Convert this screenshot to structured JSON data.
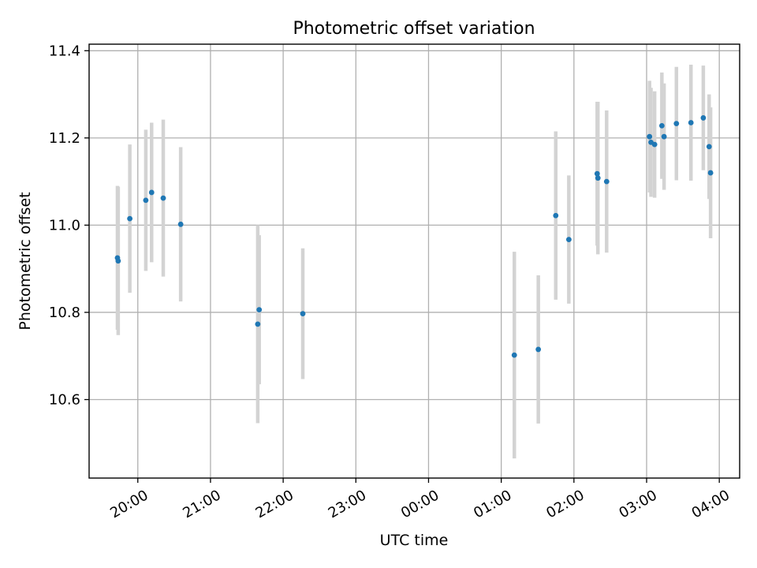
{
  "chart_data": {
    "type": "scatter",
    "title": "Photometric offset variation",
    "xlabel": "UTC time",
    "ylabel": "Photometric offset",
    "x_unit": "hours since 00:00 (negative = previous day)",
    "xlim": [
      -4.67,
      4.28
    ],
    "ylim": [
      10.42,
      11.415
    ],
    "x_ticks": [
      {
        "value": -4,
        "label": "20:00"
      },
      {
        "value": -3,
        "label": "21:00"
      },
      {
        "value": -2,
        "label": "22:00"
      },
      {
        "value": -1,
        "label": "23:00"
      },
      {
        "value": 0,
        "label": "00:00"
      },
      {
        "value": 1,
        "label": "01:00"
      },
      {
        "value": 2,
        "label": "02:00"
      },
      {
        "value": 3,
        "label": "03:00"
      },
      {
        "value": 4,
        "label": "04:00"
      }
    ],
    "y_ticks": [
      {
        "value": 10.6,
        "label": "10.6"
      },
      {
        "value": 10.8,
        "label": "10.8"
      },
      {
        "value": 11.0,
        "label": "11.0"
      },
      {
        "value": 11.2,
        "label": "11.2"
      },
      {
        "value": 11.4,
        "label": "11.4"
      }
    ],
    "grid": true,
    "point_color": "#1f77b4",
    "errorbar_color": "#d3d3d3",
    "points": [
      {
        "x": -4.28,
        "y": 10.925,
        "err": 0.165
      },
      {
        "x": -4.27,
        "y": 10.918,
        "err": 0.17
      },
      {
        "x": -4.11,
        "y": 11.015,
        "err": 0.17
      },
      {
        "x": -3.89,
        "y": 11.057,
        "err": 0.162
      },
      {
        "x": -3.81,
        "y": 11.075,
        "err": 0.16
      },
      {
        "x": -3.65,
        "y": 11.062,
        "err": 0.18
      },
      {
        "x": -3.41,
        "y": 11.002,
        "err": 0.177
      },
      {
        "x": -2.35,
        "y": 10.773,
        "err": 0.227
      },
      {
        "x": -2.33,
        "y": 10.806,
        "err": 0.171
      },
      {
        "x": -1.73,
        "y": 10.797,
        "err": 0.15
      },
      {
        "x": 1.18,
        "y": 10.702,
        "err": 0.237
      },
      {
        "x": 1.51,
        "y": 10.715,
        "err": 0.17
      },
      {
        "x": 1.75,
        "y": 11.022,
        "err": 0.193
      },
      {
        "x": 1.93,
        "y": 10.967,
        "err": 0.147
      },
      {
        "x": 2.32,
        "y": 11.118,
        "err": 0.165
      },
      {
        "x": 2.33,
        "y": 11.108,
        "err": 0.175
      },
      {
        "x": 2.45,
        "y": 11.1,
        "err": 0.163
      },
      {
        "x": 3.04,
        "y": 11.203,
        "err": 0.128
      },
      {
        "x": 3.06,
        "y": 11.19,
        "err": 0.125
      },
      {
        "x": 3.11,
        "y": 11.185,
        "err": 0.122
      },
      {
        "x": 3.21,
        "y": 11.228,
        "err": 0.122
      },
      {
        "x": 3.24,
        "y": 11.203,
        "err": 0.122
      },
      {
        "x": 3.41,
        "y": 11.233,
        "err": 0.13
      },
      {
        "x": 3.61,
        "y": 11.235,
        "err": 0.133
      },
      {
        "x": 3.78,
        "y": 11.246,
        "err": 0.12
      },
      {
        "x": 3.86,
        "y": 11.18,
        "err": 0.12
      },
      {
        "x": 3.88,
        "y": 11.12,
        "err": 0.15
      }
    ]
  }
}
